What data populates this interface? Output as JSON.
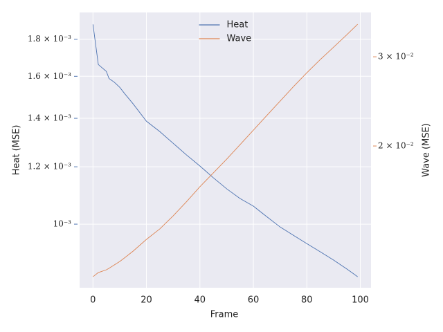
{
  "chart_data": {
    "type": "line",
    "xlabel": "Frame",
    "ylabel": "Heat (MSE)",
    "y2label": "Wave (MSE)",
    "x": [
      0,
      2,
      5,
      6,
      8,
      10,
      12,
      15,
      20,
      25,
      30,
      35,
      40,
      45,
      50,
      55,
      60,
      65,
      70,
      75,
      80,
      85,
      90,
      95,
      99
    ],
    "series": [
      {
        "name": "Heat",
        "color": "#4c72b0",
        "axis": "y",
        "values": [
          0.001887,
          0.001661,
          0.001625,
          0.001589,
          0.00157,
          0.001545,
          0.001512,
          0.001466,
          0.001387,
          0.001342,
          0.001293,
          0.001246,
          0.001203,
          0.001159,
          0.001119,
          0.001085,
          0.001059,
          0.001024,
          0.000991,
          0.000965,
          0.00094,
          0.000916,
          0.000892,
          0.000867,
          0.000846
        ]
      },
      {
        "name": "Wave",
        "color": "#dd8452",
        "axis": "y2",
        "values": [
          0.01104,
          0.01125,
          0.01139,
          0.01147,
          0.01165,
          0.01183,
          0.01205,
          0.0124,
          0.01308,
          0.01372,
          0.01456,
          0.01553,
          0.01662,
          0.01769,
          0.01883,
          0.02012,
          0.02149,
          0.02297,
          0.02453,
          0.0262,
          0.0279,
          0.02962,
          0.03134,
          0.03318,
          0.03478
        ]
      }
    ],
    "xlim": [
      -5,
      104
    ],
    "xticks": [
      0,
      20,
      40,
      60,
      80,
      100
    ],
    "ylim": [
      0.000817,
      0.00196
    ],
    "ylog": true,
    "yticks": [
      {
        "value": 0.001,
        "label": "10⁻³"
      },
      {
        "value": 0.0012,
        "label": "1.2 × 10⁻³"
      },
      {
        "value": 0.0014,
        "label": "1.4 × 10⁻³"
      },
      {
        "value": 0.0016,
        "label": "1.6 × 10⁻³"
      },
      {
        "value": 0.0018,
        "label": "1.8 × 10⁻³"
      }
    ],
    "y2lim": [
      0.0105,
      0.0367
    ],
    "y2log": true,
    "y2ticks": [
      {
        "value": 0.02,
        "label": "2 × 10⁻²"
      },
      {
        "value": 0.03,
        "label": "3 × 10⁻²"
      }
    ],
    "grid": true,
    "legend": "upper center"
  }
}
